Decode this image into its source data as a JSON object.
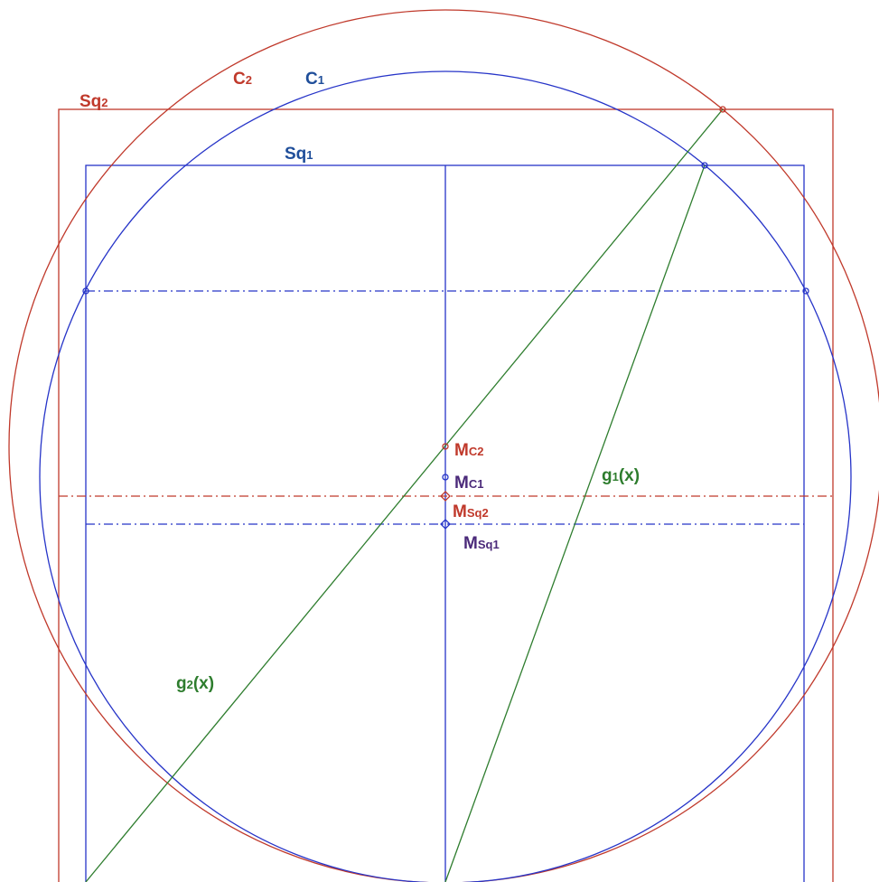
{
  "labels": [
    {
      "text": "Sq",
      "sub": "2"
    },
    {
      "text": "C",
      "sub": "2"
    },
    {
      "text": "C",
      "sub": "1"
    },
    {
      "text": "Sq",
      "sub": "1"
    },
    {
      "text": "M",
      "sub": "C2"
    },
    {
      "text": "M",
      "sub": "C1"
    },
    {
      "text": "M",
      "sub": "Sq2"
    },
    {
      "text": "M",
      "sub": "Sq1"
    },
    {
      "text": "g",
      "sub": "1",
      "tail": "(x)"
    },
    {
      "text": "g",
      "sub": "2",
      "tail": "(x)"
    }
  ]
}
